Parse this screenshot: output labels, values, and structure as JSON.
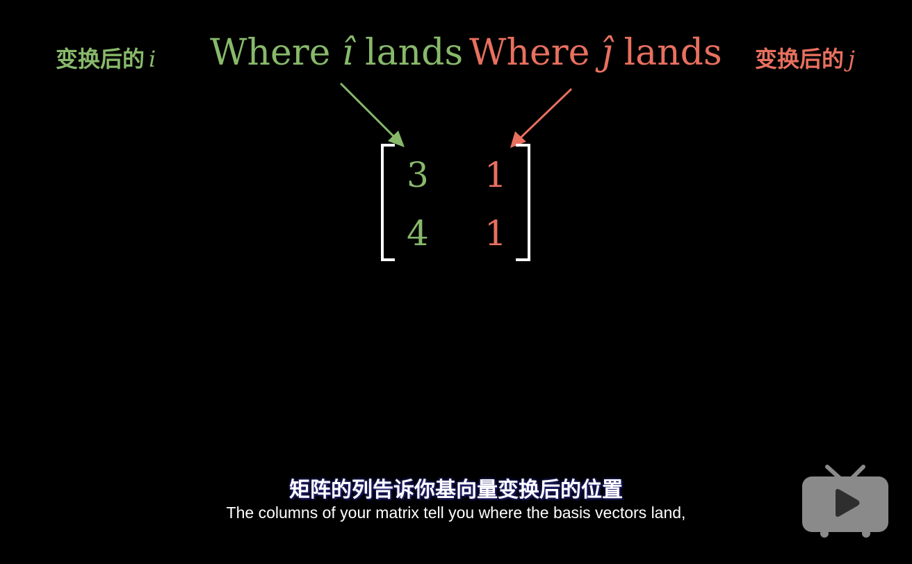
{
  "labels": {
    "cn_left_text": "变换后的",
    "cn_left_var": "i",
    "cn_right_text": "变换后的",
    "cn_right_var": "j",
    "where_i_prefix": "Where ",
    "where_i_symbol": "î",
    "where_i_suffix": " lands",
    "where_j_prefix": "Where ",
    "where_j_symbol": "ĵ",
    "where_j_suffix": " lands"
  },
  "matrix": {
    "cells": [
      [
        "3",
        "1"
      ],
      [
        "4",
        "1"
      ]
    ]
  },
  "subtitles": {
    "chinese": "矩阵的列告诉你基向量变换后的位置",
    "english": "The columns of your matrix tell you where the basis vectors land,"
  },
  "colors": {
    "i_color": "#88b96b",
    "j_color": "#e8705f",
    "background": "#000000"
  },
  "icons": {
    "watermark": "tv-play-icon"
  }
}
